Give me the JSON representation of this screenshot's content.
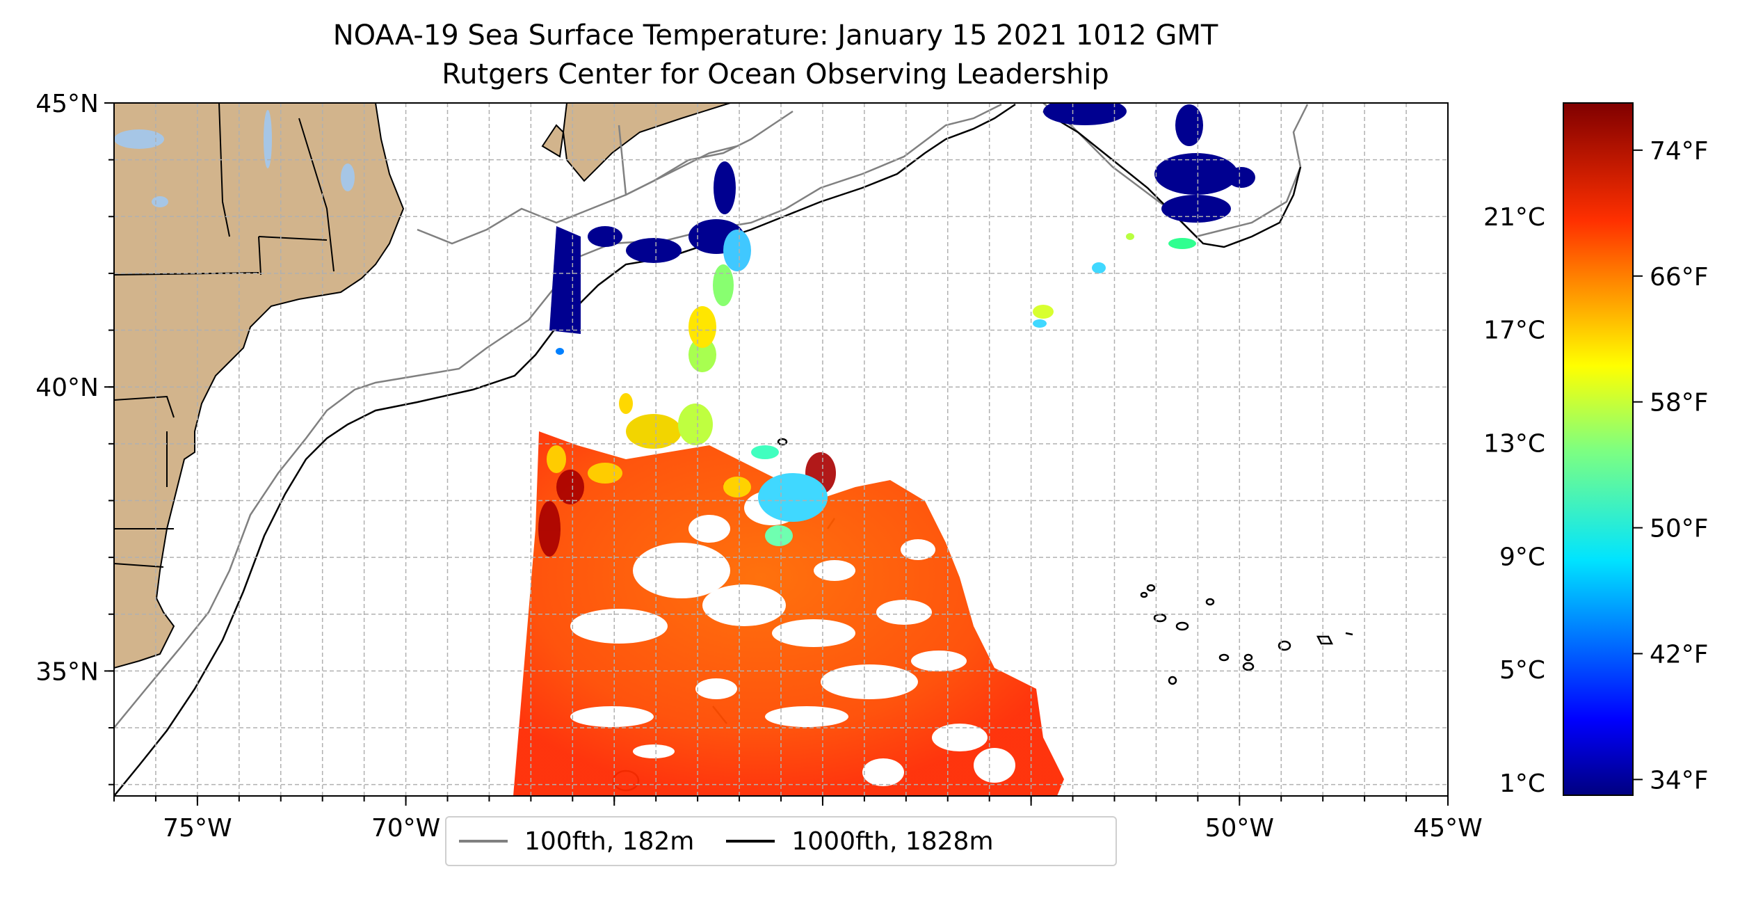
{
  "title": "NOAA-19 Sea Surface Temperature: January 15 2021 1012 GMT",
  "subtitle": "Rutgers Center for Ocean Observing Leadership",
  "map": {
    "lon_range": [
      -77,
      -45
    ],
    "lat_range": [
      32.8,
      45
    ],
    "lon_ticks": [
      {
        "value": -75,
        "label": "75°W"
      },
      {
        "value": -70,
        "label": "70°W"
      },
      {
        "value": -65,
        "label": "65°W"
      },
      {
        "value": -60,
        "label": "60°W"
      },
      {
        "value": -55,
        "label": "55°W"
      },
      {
        "value": -50,
        "label": "50°W"
      },
      {
        "value": -45,
        "label": "45°W"
      }
    ],
    "lat_ticks": [
      {
        "value": 45,
        "label": "45°N"
      },
      {
        "value": 40,
        "label": "40°N"
      },
      {
        "value": 35,
        "label": "35°N"
      }
    ],
    "grid": true,
    "land_color": "#d2b48c",
    "lake_color": "#a6c6e6"
  },
  "legend": {
    "items": [
      {
        "label": "100fth, 182m",
        "color": "#808080"
      },
      {
        "label": "1000fth, 1828m",
        "color": "#000000"
      }
    ]
  },
  "colorbar": {
    "colormap": "jet",
    "range_f": [
      33,
      77
    ],
    "celsius_ticks": [
      {
        "value": 1,
        "label": "1°C"
      },
      {
        "value": 5,
        "label": "5°C"
      },
      {
        "value": 9,
        "label": "9°C"
      },
      {
        "value": 13,
        "label": "13°C"
      },
      {
        "value": 17,
        "label": "17°C"
      },
      {
        "value": 21,
        "label": "21°C"
      }
    ],
    "fahrenheit_ticks": [
      {
        "value": 34,
        "label": "34°F"
      },
      {
        "value": 42,
        "label": "42°F"
      },
      {
        "value": 50,
        "label": "50°F"
      },
      {
        "value": 58,
        "label": "58°F"
      },
      {
        "value": 66,
        "label": "66°F"
      },
      {
        "value": 74,
        "label": "74°F"
      }
    ]
  }
}
